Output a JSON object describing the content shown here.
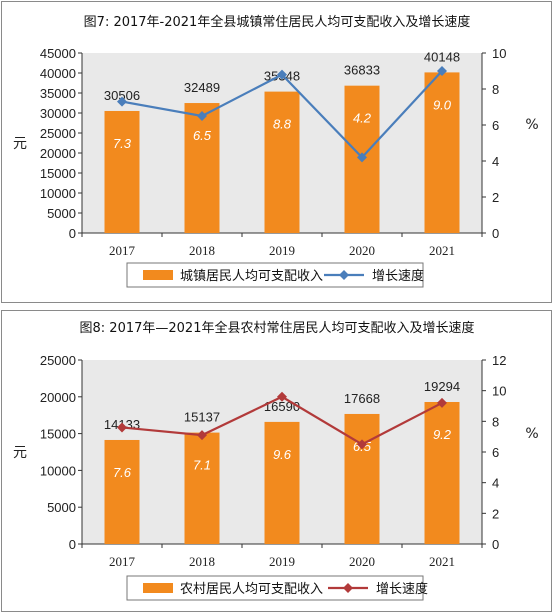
{
  "chart_data": [
    {
      "type": "bar",
      "title": "图7:   2017年-2021年全县城镇常住居民人均可支配收入及增长速度",
      "categories": [
        "2017",
        "2018",
        "2019",
        "2020",
        "2021"
      ],
      "series": [
        {
          "name": "城镇居民人均可支配收入",
          "type": "bar",
          "axis": "left",
          "values": [
            30506,
            32489,
            35348,
            36833,
            40148
          ]
        },
        {
          "name": "增长速度",
          "type": "line",
          "axis": "right",
          "values": [
            7.3,
            6.5,
            8.8,
            4.2,
            9.0
          ]
        }
      ],
      "growth_labels": [
        "7.3",
        "6.5",
        "8.8",
        "4.2",
        "9.0"
      ],
      "ylabel": "元",
      "y2label": "%",
      "ylim": [
        0,
        45000
      ],
      "yticks": [
        0,
        5000,
        10000,
        15000,
        20000,
        25000,
        30000,
        35000,
        40000,
        45000
      ],
      "y2lim": [
        0,
        10
      ],
      "y2ticks": [
        0,
        2,
        4,
        6,
        8,
        10
      ],
      "legend_position": "bottom",
      "colors": {
        "bar": "#F28A1E",
        "line": "#4A7EBB",
        "marker": "#4A7EBB",
        "plot_bg": "#E9E9E9"
      },
      "marker": "diamond"
    },
    {
      "type": "bar",
      "title": "图8:   2017年—2021年全县农村常住居民人均可支配收入及增长速度",
      "categories": [
        "2017",
        "2018",
        "2019",
        "2020",
        "2021"
      ],
      "series": [
        {
          "name": "农村居民人均可支配收入",
          "type": "bar",
          "axis": "left",
          "values": [
            14133,
            15137,
            16590,
            17668,
            19294
          ]
        },
        {
          "name": "增长速度",
          "type": "line",
          "axis": "right",
          "values": [
            7.6,
            7.1,
            9.6,
            6.5,
            9.2
          ]
        }
      ],
      "growth_labels": [
        "7.6",
        "7.1",
        "9.6",
        "6.5",
        "9.2"
      ],
      "ylabel": "元",
      "y2label": "%",
      "ylim": [
        0,
        25000
      ],
      "yticks": [
        0,
        5000,
        10000,
        15000,
        20000,
        25000
      ],
      "y2lim": [
        0,
        12
      ],
      "y2ticks": [
        0,
        2,
        4,
        6,
        8,
        10,
        12
      ],
      "legend_position": "bottom",
      "colors": {
        "bar": "#F28A1E",
        "line": "#B23A3A",
        "marker": "#B23A3A",
        "plot_bg": "#E9E9E9"
      },
      "marker": "diamond"
    }
  ]
}
